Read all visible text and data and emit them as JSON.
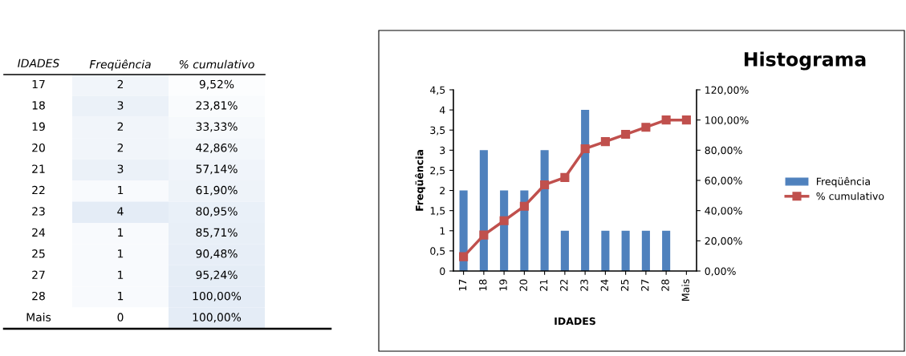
{
  "chart_data": [
    {
      "type": "heatmap",
      "ylabel": "IDADES",
      "categories": [
        "Freqüência",
        "% cumulativo"
      ],
      "y_categories": [
        "17",
        "18",
        "19",
        "20",
        "21",
        "22",
        "23",
        "24",
        "25",
        "27",
        "28",
        "Mais"
      ],
      "cells": [
        [
          2,
          9.52
        ],
        [
          3,
          23.81
        ],
        [
          2,
          33.33
        ],
        [
          2,
          42.86
        ],
        [
          3,
          57.14
        ],
        [
          1,
          61.9
        ],
        [
          4,
          80.95
        ],
        [
          1,
          85.71
        ],
        [
          1,
          90.48
        ],
        [
          1,
          95.24
        ],
        [
          1,
          100.0
        ],
        [
          0,
          100.0
        ]
      ],
      "cell_labels": [
        [
          "2",
          "9,52%"
        ],
        [
          "3",
          "23,81%"
        ],
        [
          "2",
          "33,33%"
        ],
        [
          "2",
          "42,86%"
        ],
        [
          "3",
          "57,14%"
        ],
        [
          "1",
          "61,90%"
        ],
        [
          "4",
          "80,95%"
        ],
        [
          "1",
          "85,71%"
        ],
        [
          "1",
          "90,48%"
        ],
        [
          "1",
          "95,24%"
        ],
        [
          "1",
          "100,00%"
        ],
        [
          "0",
          "100,00%"
        ]
      ]
    },
    {
      "type": "bar",
      "title": "Histograma",
      "xlabel": "IDADES",
      "ylabel": "Freqüência",
      "categories": [
        "17",
        "18",
        "19",
        "20",
        "21",
        "22",
        "23",
        "24",
        "25",
        "27",
        "28",
        "Mais"
      ],
      "series": [
        {
          "name": "Freqüência",
          "color": "#4f81bd",
          "values": [
            2,
            3,
            2,
            2,
            3,
            1,
            4,
            1,
            1,
            1,
            1,
            0
          ]
        },
        {
          "name": "% cumulativo",
          "type": "line",
          "axis": "y2",
          "color": "#c0504d",
          "marker": "square",
          "values": [
            9.5,
            23.8,
            33.3,
            42.9,
            57.1,
            61.9,
            81.0,
            85.7,
            90.5,
            95.2,
            100,
            100
          ]
        }
      ],
      "ylim": [
        0,
        4.5
      ],
      "yticks": [
        0,
        {
          "value": 0.5,
          "label": "0,5"
        },
        1,
        {
          "value": 1.5,
          "label": "1,5"
        },
        2,
        {
          "value": 2.5,
          "label": "2,5"
        },
        3,
        {
          "value": 3.5,
          "label": "3,5"
        },
        4,
        {
          "value": 4.5,
          "label": "4,5"
        }
      ],
      "y2lim": [
        0,
        120
      ],
      "y2ticks": [
        {
          "value": 0,
          "label": "0,00%"
        },
        {
          "value": 20,
          "label": "20,00%"
        },
        {
          "value": 40,
          "label": "40,00%"
        },
        {
          "value": 60,
          "label": "60,00%"
        },
        {
          "value": 80,
          "label": "80,00%"
        },
        {
          "value": 100,
          "label": "100,00%"
        },
        {
          "value": 120,
          "label": "120,00%"
        }
      ],
      "legend": "right"
    }
  ]
}
